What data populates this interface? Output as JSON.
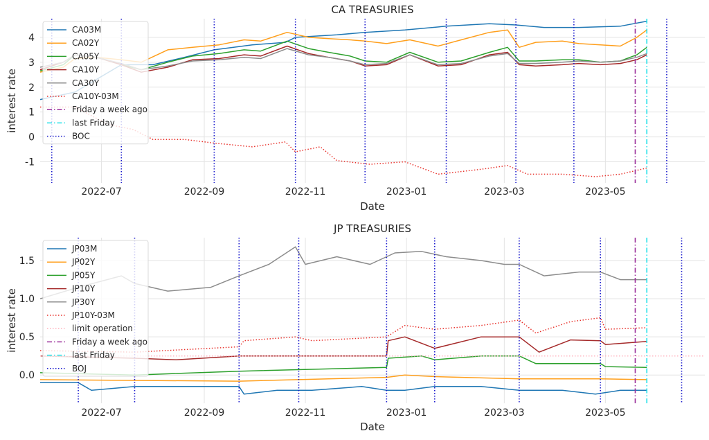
{
  "chart_data": [
    {
      "type": "line",
      "title": "CA TREASURIES",
      "xlabel": "Date",
      "ylabel": "interest rate",
      "xlim": [
        "2022-05-25",
        "2023-06-30"
      ],
      "ylim": [
        -1.85,
        4.75
      ],
      "x_ticks": [
        "2022-07",
        "2022-09",
        "2022-11",
        "2023-01",
        "2023-03",
        "2023-05"
      ],
      "y_ticks": [
        -1,
        0,
        1,
        2,
        3,
        4
      ],
      "grid": true,
      "legend_position": "upper-left",
      "series": [
        {
          "name": "CA03M",
          "color": "#1f77b4",
          "style": "solid",
          "x": [
            "2022-05-25",
            "2022-06-15",
            "2022-07-13",
            "2022-08-01",
            "2022-08-20",
            "2022-09-07",
            "2022-09-30",
            "2022-10-20",
            "2022-10-26",
            "2022-11-20",
            "2022-12-07",
            "2022-12-31",
            "2023-01-25",
            "2023-02-20",
            "2023-03-08",
            "2023-03-25",
            "2023-04-15",
            "2023-05-10",
            "2023-05-26"
          ],
          "y": [
            1.5,
            1.8,
            2.9,
            2.9,
            3.2,
            3.5,
            3.7,
            3.8,
            4.0,
            4.1,
            4.2,
            4.3,
            4.45,
            4.55,
            4.5,
            4.4,
            4.4,
            4.45,
            4.65
          ]
        },
        {
          "name": "CA02Y",
          "color": "#ff9f1c",
          "style": "solid",
          "x": [
            "2022-05-25",
            "2022-06-08",
            "2022-06-15",
            "2022-06-28",
            "2022-07-13",
            "2022-07-25",
            "2022-08-10",
            "2022-08-25",
            "2022-09-10",
            "2022-09-25",
            "2022-10-05",
            "2022-10-21",
            "2022-11-03",
            "2022-11-15",
            "2022-11-28",
            "2022-12-07",
            "2022-12-20",
            "2023-01-03",
            "2023-01-20",
            "2023-02-03",
            "2023-02-20",
            "2023-03-03",
            "2023-03-10",
            "2023-03-20",
            "2023-04-05",
            "2023-04-15",
            "2023-04-28",
            "2023-05-10",
            "2023-05-20",
            "2023-05-26"
          ],
          "y": [
            2.6,
            2.8,
            3.15,
            3.2,
            3.1,
            3.0,
            3.5,
            3.6,
            3.7,
            3.9,
            3.85,
            4.2,
            4.0,
            3.95,
            3.9,
            3.85,
            3.75,
            3.9,
            3.65,
            3.9,
            4.2,
            4.3,
            3.6,
            3.8,
            3.85,
            3.75,
            3.7,
            3.65,
            4.0,
            4.3
          ]
        },
        {
          "name": "CA05Y",
          "color": "#2ca02c",
          "style": "solid",
          "x": [
            "2022-05-25",
            "2022-06-08",
            "2022-06-15",
            "2022-06-28",
            "2022-07-13",
            "2022-07-25",
            "2022-08-10",
            "2022-08-25",
            "2022-09-10",
            "2022-09-25",
            "2022-10-05",
            "2022-10-21",
            "2022-11-03",
            "2022-11-15",
            "2022-11-28",
            "2022-12-07",
            "2022-12-20",
            "2023-01-03",
            "2023-01-20",
            "2023-02-03",
            "2023-02-20",
            "2023-03-03",
            "2023-03-10",
            "2023-03-20",
            "2023-04-05",
            "2023-04-15",
            "2023-04-28",
            "2023-05-10",
            "2023-05-20",
            "2023-05-26"
          ],
          "y": [
            2.65,
            2.9,
            3.3,
            3.2,
            2.9,
            2.7,
            3.0,
            3.25,
            3.35,
            3.5,
            3.45,
            3.85,
            3.55,
            3.4,
            3.25,
            3.05,
            3.0,
            3.4,
            3.0,
            3.05,
            3.4,
            3.6,
            3.05,
            3.05,
            3.1,
            3.1,
            3.0,
            3.05,
            3.3,
            3.6
          ]
        },
        {
          "name": "CA10Y",
          "color": "#a52a2a",
          "style": "solid",
          "x": [
            "2022-05-25",
            "2022-06-08",
            "2022-06-15",
            "2022-06-28",
            "2022-07-13",
            "2022-07-25",
            "2022-08-10",
            "2022-08-25",
            "2022-09-10",
            "2022-09-25",
            "2022-10-05",
            "2022-10-21",
            "2022-11-03",
            "2022-11-15",
            "2022-11-28",
            "2022-12-07",
            "2022-12-20",
            "2023-01-03",
            "2023-01-20",
            "2023-02-03",
            "2023-02-20",
            "2023-03-03",
            "2023-03-10",
            "2023-03-20",
            "2023-04-05",
            "2023-04-15",
            "2023-04-28",
            "2023-05-10",
            "2023-05-20",
            "2023-05-26"
          ],
          "y": [
            2.7,
            3.0,
            3.3,
            3.2,
            2.9,
            2.6,
            2.8,
            3.1,
            3.15,
            3.3,
            3.25,
            3.65,
            3.35,
            3.2,
            3.05,
            2.85,
            2.9,
            3.3,
            2.85,
            2.9,
            3.3,
            3.4,
            2.9,
            2.85,
            2.9,
            2.95,
            2.9,
            2.95,
            3.1,
            3.3
          ]
        },
        {
          "name": "CA30Y",
          "color": "#8c8c8c",
          "style": "solid",
          "x": [
            "2022-05-25",
            "2022-06-08",
            "2022-06-15",
            "2022-06-28",
            "2022-07-13",
            "2022-07-25",
            "2022-08-10",
            "2022-08-25",
            "2022-09-10",
            "2022-09-25",
            "2022-10-05",
            "2022-10-21",
            "2022-11-03",
            "2022-11-15",
            "2022-11-28",
            "2022-12-07",
            "2022-12-20",
            "2023-01-03",
            "2023-01-20",
            "2023-02-03",
            "2023-02-20",
            "2023-03-03",
            "2023-03-10",
            "2023-03-20",
            "2023-04-05",
            "2023-04-15",
            "2023-04-28",
            "2023-05-10",
            "2023-05-20",
            "2023-05-26"
          ],
          "y": [
            2.8,
            3.0,
            3.3,
            3.2,
            2.95,
            2.7,
            2.85,
            3.05,
            3.1,
            3.2,
            3.15,
            3.55,
            3.3,
            3.2,
            3.05,
            2.9,
            2.95,
            3.3,
            2.9,
            2.95,
            3.25,
            3.35,
            2.95,
            2.95,
            3.0,
            3.05,
            3.0,
            3.05,
            3.2,
            3.35
          ]
        },
        {
          "name": "CA10Y-03M",
          "color": "#e8302a",
          "style": "dotted",
          "x": [
            "2022-05-25",
            "2022-06-15",
            "2022-07-05",
            "2022-07-20",
            "2022-08-01",
            "2022-08-20",
            "2022-09-07",
            "2022-09-30",
            "2022-10-20",
            "2022-10-26",
            "2022-11-10",
            "2022-11-20",
            "2022-12-10",
            "2022-12-31",
            "2023-01-20",
            "2023-02-15",
            "2023-03-03",
            "2023-03-15",
            "2023-04-05",
            "2023-04-25",
            "2023-05-10",
            "2023-05-26"
          ],
          "y": [
            1.2,
            1.2,
            0.5,
            0.3,
            -0.1,
            -0.1,
            -0.25,
            -0.4,
            -0.2,
            -0.6,
            -0.4,
            -0.95,
            -1.1,
            -1.0,
            -1.5,
            -1.3,
            -1.15,
            -1.5,
            -1.5,
            -1.6,
            -1.5,
            -1.25
          ]
        }
      ],
      "vlines": [
        {
          "name": "Friday a week ago",
          "date": "2023-05-19",
          "color": "#9b2f9b",
          "style": "dashdot"
        },
        {
          "name": "last Friday",
          "date": "2023-05-26",
          "color": "#20e0e8",
          "style": "dashdot"
        },
        {
          "name": "BOC",
          "dates": [
            "2022-06-01",
            "2022-07-13",
            "2022-09-07",
            "2022-10-26",
            "2022-12-07",
            "2023-01-25",
            "2023-03-08",
            "2023-04-12",
            "2023-06-07"
          ],
          "color": "#1a1acd",
          "style": "dotted"
        }
      ]
    },
    {
      "type": "line",
      "title": "JP TREASURIES",
      "xlabel": "Date",
      "ylabel": "interest rate",
      "xlim": [
        "2022-05-25",
        "2023-06-30"
      ],
      "ylim": [
        -0.37,
        1.8
      ],
      "x_ticks": [
        "2022-07",
        "2022-09",
        "2022-11",
        "2023-01",
        "2023-03",
        "2023-05"
      ],
      "y_ticks": [
        0.0,
        0.5,
        1.0,
        1.5
      ],
      "grid": true,
      "legend_position": "upper-left",
      "series": [
        {
          "name": "JP03M",
          "color": "#1f77b4",
          "style": "solid",
          "x": [
            "2022-05-25",
            "2022-06-17",
            "2022-06-25",
            "2022-07-21",
            "2022-08-15",
            "2022-09-22",
            "2022-09-25",
            "2022-10-15",
            "2022-11-05",
            "2022-12-05",
            "2022-12-20",
            "2022-12-31",
            "2023-01-18",
            "2023-02-15",
            "2023-03-10",
            "2023-04-05",
            "2023-04-25",
            "2023-05-10",
            "2023-05-26"
          ],
          "y": [
            -0.1,
            -0.1,
            -0.2,
            -0.15,
            -0.15,
            -0.15,
            -0.25,
            -0.2,
            -0.2,
            -0.15,
            -0.2,
            -0.2,
            -0.15,
            -0.15,
            -0.2,
            -0.2,
            -0.25,
            -0.2,
            -0.2
          ]
        },
        {
          "name": "JP02Y",
          "color": "#ff9f1c",
          "style": "solid",
          "x": [
            "2022-05-25",
            "2022-07-21",
            "2022-09-22",
            "2022-12-20",
            "2022-12-31",
            "2023-01-18",
            "2023-03-10",
            "2023-04-28",
            "2023-05-26"
          ],
          "y": [
            -0.06,
            -0.07,
            -0.08,
            -0.03,
            0.0,
            -0.02,
            -0.05,
            -0.05,
            -0.06
          ]
        },
        {
          "name": "JP05Y",
          "color": "#2ca02c",
          "style": "solid",
          "x": [
            "2022-05-25",
            "2022-07-21",
            "2022-09-22",
            "2022-12-20",
            "2022-12-21",
            "2023-01-10",
            "2023-01-18",
            "2023-02-15",
            "2023-03-10",
            "2023-03-20",
            "2023-04-28",
            "2023-05-01",
            "2023-05-26"
          ],
          "y": [
            0.03,
            0.0,
            0.05,
            0.1,
            0.22,
            0.25,
            0.2,
            0.25,
            0.25,
            0.15,
            0.15,
            0.11,
            0.1
          ]
        },
        {
          "name": "JP10Y",
          "color": "#a52a2a",
          "style": "solid",
          "x": [
            "2022-05-25",
            "2022-07-21",
            "2022-08-15",
            "2022-09-22",
            "2022-12-20",
            "2022-12-21",
            "2022-12-31",
            "2023-01-18",
            "2023-02-15",
            "2023-03-10",
            "2023-03-22",
            "2023-04-10",
            "2023-04-28",
            "2023-05-01",
            "2023-05-26"
          ],
          "y": [
            0.25,
            0.22,
            0.2,
            0.25,
            0.25,
            0.45,
            0.5,
            0.35,
            0.5,
            0.5,
            0.3,
            0.46,
            0.45,
            0.4,
            0.44
          ]
        },
        {
          "name": "JP30Y",
          "color": "#8c8c8c",
          "style": "solid",
          "x": [
            "2022-05-25",
            "2022-06-17",
            "2022-07-13",
            "2022-07-21",
            "2022-08-10",
            "2022-09-05",
            "2022-09-22",
            "2022-10-10",
            "2022-10-26",
            "2022-11-01",
            "2022-11-20",
            "2022-12-10",
            "2022-12-25",
            "2023-01-10",
            "2023-01-25",
            "2023-02-15",
            "2023-03-01",
            "2023-03-10",
            "2023-03-25",
            "2023-04-15",
            "2023-04-28",
            "2023-05-10",
            "2023-05-26"
          ],
          "y": [
            1.0,
            1.15,
            1.3,
            1.2,
            1.1,
            1.15,
            1.3,
            1.45,
            1.68,
            1.45,
            1.55,
            1.45,
            1.6,
            1.62,
            1.55,
            1.5,
            1.45,
            1.45,
            1.3,
            1.35,
            1.35,
            1.25,
            1.25
          ]
        },
        {
          "name": "JP10Y-03M",
          "color": "#e8302a",
          "style": "dotted",
          "x": [
            "2022-05-25",
            "2022-07-21",
            "2022-09-22",
            "2022-09-25",
            "2022-10-26",
            "2022-11-05",
            "2022-12-20",
            "2022-12-31",
            "2023-01-18",
            "2023-02-15",
            "2023-03-10",
            "2023-03-20",
            "2023-04-10",
            "2023-04-28",
            "2023-05-01",
            "2023-05-26"
          ],
          "y": [
            0.32,
            0.3,
            0.37,
            0.45,
            0.5,
            0.45,
            0.5,
            0.65,
            0.6,
            0.65,
            0.72,
            0.55,
            0.7,
            0.75,
            0.6,
            0.62
          ]
        },
        {
          "name": "limit operation",
          "color": "#ffb6c1",
          "style": "dotted",
          "x": [
            "2022-05-25",
            "2023-06-30"
          ],
          "y": [
            0.25,
            0.25
          ]
        }
      ],
      "vlines": [
        {
          "name": "Friday a week ago",
          "date": "2023-05-19",
          "color": "#9b2f9b",
          "style": "dashdot"
        },
        {
          "name": "last Friday",
          "date": "2023-05-26",
          "color": "#20e0e8",
          "style": "dashdot"
        },
        {
          "name": "BOJ",
          "dates": [
            "2022-06-17",
            "2022-07-21",
            "2022-09-22",
            "2022-10-28",
            "2022-12-20",
            "2023-01-18",
            "2023-03-10",
            "2023-04-28",
            "2023-06-16"
          ],
          "color": "#1a1acd",
          "style": "dotted"
        }
      ]
    }
  ]
}
